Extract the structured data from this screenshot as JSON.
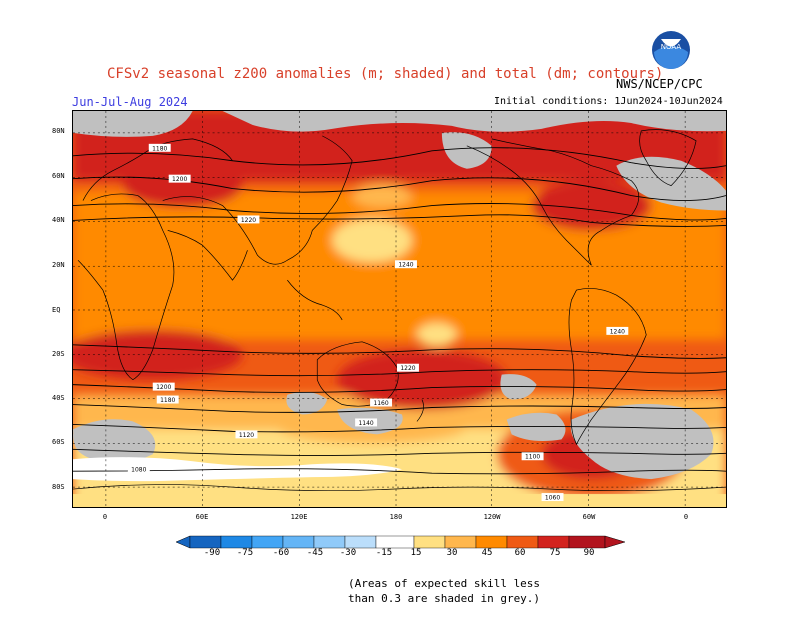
{
  "header": {
    "title": "CFSv2 seasonal z200 anomalies (m; shaded) and total (dm; contours)",
    "agency": "NWS/NCEP/CPC",
    "season": "Jun-Jul-Aug 2024",
    "initial_conditions": "Initial conditions: 1Jun2024-10Jun2024"
  },
  "map": {
    "lat_labels": [
      "80N",
      "60N",
      "40N",
      "20N",
      "EQ",
      "20S",
      "40S",
      "60S",
      "80S"
    ],
    "lon_labels": [
      "0",
      "60E",
      "120E",
      "180",
      "120W",
      "60W",
      "0"
    ],
    "contour_labels": [
      "1180",
      "1200",
      "1220",
      "1240",
      "1240",
      "1220",
      "1200",
      "1180",
      "1160",
      "1140",
      "1120",
      "1100",
      "1080",
      "1060"
    ],
    "low_skill_color": "#c0c0c0"
  },
  "legend": {
    "ticks": [
      "-90",
      "-75",
      "-60",
      "-45",
      "-30",
      "-15",
      "15",
      "30",
      "45",
      "60",
      "75",
      "90"
    ],
    "colors": [
      "#1565c0",
      "#1e88e5",
      "#42a5f5",
      "#64b5f6",
      "#90caf9",
      "#bbdefb",
      "#ffffff",
      "#ffe082",
      "#ffb74d",
      "#ff8a00",
      "#ef5a14",
      "#d2231e",
      "#b2141e"
    ]
  },
  "footnote": {
    "line1": "(Areas of expected skill less",
    "line2": "than 0.3 are shaded in grey.)"
  }
}
